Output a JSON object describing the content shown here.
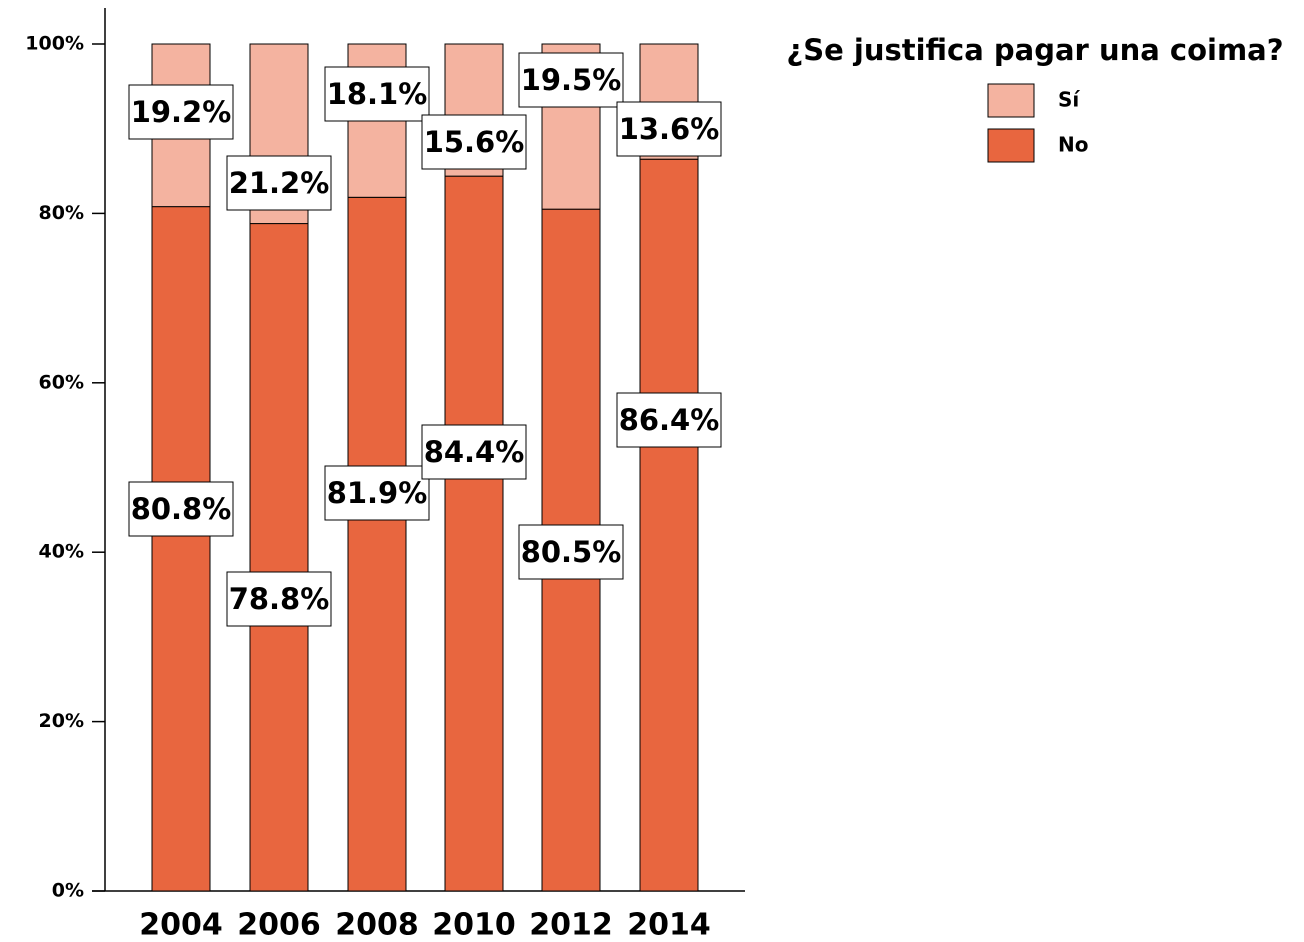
{
  "chart_data": {
    "type": "stacked_bar",
    "categories": [
      "2004",
      "2006",
      "2008",
      "2010",
      "2012",
      "2014"
    ],
    "series": [
      {
        "name": "No",
        "color": "#e8663f",
        "values": [
          80.8,
          78.8,
          81.9,
          84.4,
          80.5,
          86.4
        ],
        "value_labels": [
          "80.8%",
          "78.8%",
          "81.9%",
          "84.4%",
          "80.5%",
          "86.4%"
        ]
      },
      {
        "name": "Sí",
        "color": "#f4b3a0",
        "values": [
          19.2,
          21.2,
          18.1,
          15.6,
          19.5,
          13.6
        ],
        "value_labels": [
          "19.2%",
          "21.2%",
          "18.1%",
          "15.6%",
          "19.5%",
          "13.6%"
        ]
      }
    ],
    "legend_title": "¿Se justifica pagar una coima?",
    "legend": "top-right",
    "ylim": [
      0,
      100
    ],
    "yticks": [
      {
        "value": 0,
        "label": "0%"
      },
      {
        "value": 20,
        "label": "20%"
      },
      {
        "value": 40,
        "label": "40%"
      },
      {
        "value": 60,
        "label": "60%"
      },
      {
        "value": 80,
        "label": "80%"
      },
      {
        "value": 100,
        "label": "100%"
      }
    ]
  }
}
